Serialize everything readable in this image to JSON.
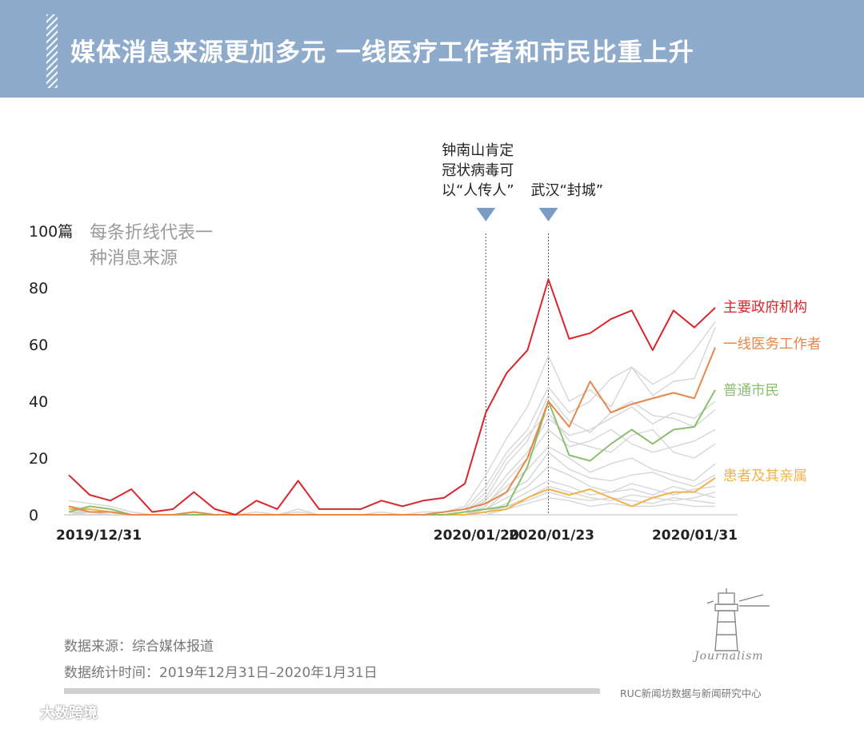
{
  "title": "媒体消息来源更加多元 一线医疗工作者和市民比重上升",
  "footer": {
    "source": "数据来源：综合媒体报道",
    "time": "数据统计时间：2019年12月31日–2020年1月31日",
    "org": "RUC新闻坊数据与新闻研究中心",
    "logo_text": "Journalism"
  },
  "watermark": "大数跨境",
  "chart_data": {
    "type": "line",
    "ylabel": "100篇",
    "note": "每条折线代表一种消息来源",
    "ylim": [
      0,
      100
    ],
    "y_ticks": [
      0,
      20,
      40,
      60,
      80
    ],
    "x_count": 32,
    "x_tick_labels": [
      {
        "index": 0,
        "label": "2019/12/31"
      },
      {
        "index": 20,
        "label": "2020/01/20"
      },
      {
        "index": 23,
        "label": "2020/01/23"
      },
      {
        "index": 31,
        "label": "2020/01/31"
      }
    ],
    "annotations": [
      {
        "index": 20,
        "lines": [
          "钟南山肯定",
          "冠状病毒可",
          "以“人传人”"
        ]
      },
      {
        "index": 23,
        "lines": [
          "武汉“封城”"
        ]
      }
    ],
    "series": [
      {
        "name": "主要政府机构",
        "color": "#d9262c",
        "values": [
          14,
          7,
          5,
          9,
          1,
          2,
          8,
          2,
          0,
          5,
          2,
          12,
          2,
          2,
          2,
          5,
          3,
          5,
          6,
          11,
          36,
          50,
          58,
          83,
          62,
          64,
          69,
          72,
          58,
          72,
          66,
          73
        ]
      },
      {
        "name": "一线医务工作者",
        "color": "#e8874a",
        "values": [
          3,
          1,
          1,
          0,
          0,
          0,
          1,
          0,
          0,
          0,
          0,
          0,
          0,
          0,
          0,
          0,
          0,
          0,
          1,
          2,
          4,
          8,
          20,
          40,
          31,
          47,
          36,
          39,
          41,
          43,
          41,
          59
        ]
      },
      {
        "name": "普通市民",
        "color": "#8bbf6e",
        "values": [
          1,
          3,
          2,
          0,
          0,
          0,
          0,
          0,
          0,
          0,
          0,
          0,
          0,
          0,
          0,
          0,
          0,
          0,
          0,
          1,
          2,
          3,
          17,
          40,
          21,
          19,
          25,
          30,
          25,
          30,
          31,
          44
        ]
      },
      {
        "name": "患者及其亲属",
        "color": "#f2b34a",
        "values": [
          2,
          2,
          1,
          0,
          0,
          0,
          0,
          0,
          0,
          0,
          0,
          0,
          0,
          0,
          0,
          0,
          0,
          0,
          0,
          0,
          1,
          2,
          6,
          9,
          7,
          9,
          6,
          3,
          6,
          8,
          8,
          13
        ]
      }
    ],
    "background_series": [
      [
        5,
        4,
        3,
        1,
        0,
        0,
        1,
        0,
        0,
        1,
        0,
        2,
        0,
        0,
        0,
        1,
        0,
        1,
        1,
        3,
        14,
        27,
        38,
        56,
        40,
        44,
        38,
        52,
        42,
        47,
        48,
        66
      ],
      [
        3,
        2,
        1,
        0,
        0,
        0,
        0,
        0,
        0,
        0,
        0,
        1,
        0,
        0,
        0,
        0,
        0,
        0,
        1,
        2,
        10,
        22,
        30,
        45,
        36,
        40,
        48,
        52,
        46,
        50,
        58,
        68
      ],
      [
        1,
        1,
        0,
        0,
        0,
        0,
        0,
        0,
        0,
        0,
        0,
        0,
        0,
        0,
        0,
        0,
        0,
        0,
        0,
        1,
        6,
        18,
        26,
        42,
        33,
        29,
        36,
        40,
        35,
        34,
        31,
        37
      ],
      [
        2,
        1,
        1,
        0,
        0,
        0,
        0,
        0,
        0,
        0,
        0,
        0,
        0,
        0,
        0,
        0,
        0,
        0,
        0,
        1,
        8,
        20,
        28,
        36,
        26,
        24,
        22,
        28,
        30,
        22,
        20,
        25
      ],
      [
        0,
        0,
        0,
        0,
        0,
        0,
        0,
        0,
        0,
        0,
        0,
        0,
        0,
        0,
        0,
        0,
        0,
        0,
        0,
        0,
        3,
        12,
        20,
        30,
        24,
        26,
        30,
        25,
        22,
        24,
        26,
        30
      ],
      [
        1,
        0,
        0,
        0,
        0,
        0,
        0,
        0,
        0,
        0,
        0,
        0,
        0,
        0,
        0,
        0,
        0,
        0,
        0,
        0,
        4,
        10,
        16,
        24,
        20,
        15,
        18,
        20,
        16,
        14,
        12,
        18
      ],
      [
        0,
        1,
        0,
        0,
        0,
        0,
        0,
        0,
        0,
        0,
        0,
        0,
        0,
        0,
        0,
        0,
        0,
        0,
        0,
        0,
        2,
        8,
        12,
        22,
        16,
        13,
        12,
        14,
        15,
        12,
        10,
        14
      ],
      [
        1,
        0,
        0,
        0,
        0,
        0,
        0,
        0,
        0,
        0,
        0,
        0,
        0,
        0,
        0,
        0,
        0,
        0,
        0,
        0,
        2,
        6,
        10,
        17,
        14,
        10,
        8,
        11,
        9,
        7,
        9,
        10
      ],
      [
        0,
        0,
        0,
        0,
        0,
        0,
        0,
        0,
        0,
        0,
        0,
        0,
        0,
        0,
        0,
        0,
        0,
        0,
        0,
        0,
        1,
        4,
        8,
        12,
        10,
        7,
        8,
        9,
        7,
        10,
        8,
        6
      ],
      [
        0,
        0,
        0,
        0,
        0,
        0,
        0,
        0,
        0,
        0,
        0,
        0,
        0,
        0,
        0,
        0,
        0,
        0,
        0,
        0,
        1,
        3,
        5,
        8,
        6,
        5,
        6,
        5,
        4,
        6,
        5,
        4
      ],
      [
        1,
        1,
        0,
        0,
        0,
        0,
        0,
        0,
        0,
        0,
        0,
        0,
        0,
        0,
        0,
        0,
        0,
        0,
        0,
        0,
        0,
        2,
        4,
        6,
        5,
        3,
        4,
        3,
        3,
        4,
        3,
        3
      ],
      [
        0,
        0,
        0,
        0,
        0,
        0,
        0,
        0,
        0,
        0,
        0,
        0,
        0,
        0,
        0,
        0,
        0,
        0,
        0,
        0,
        1,
        3,
        6,
        10,
        8,
        6,
        5,
        7,
        6,
        5,
        6,
        8
      ],
      [
        2,
        1,
        0,
        0,
        0,
        0,
        0,
        0,
        0,
        0,
        0,
        0,
        0,
        0,
        0,
        0,
        0,
        0,
        0,
        1,
        5,
        14,
        22,
        34,
        28,
        30,
        34,
        38,
        32,
        36,
        34,
        40
      ]
    ]
  }
}
